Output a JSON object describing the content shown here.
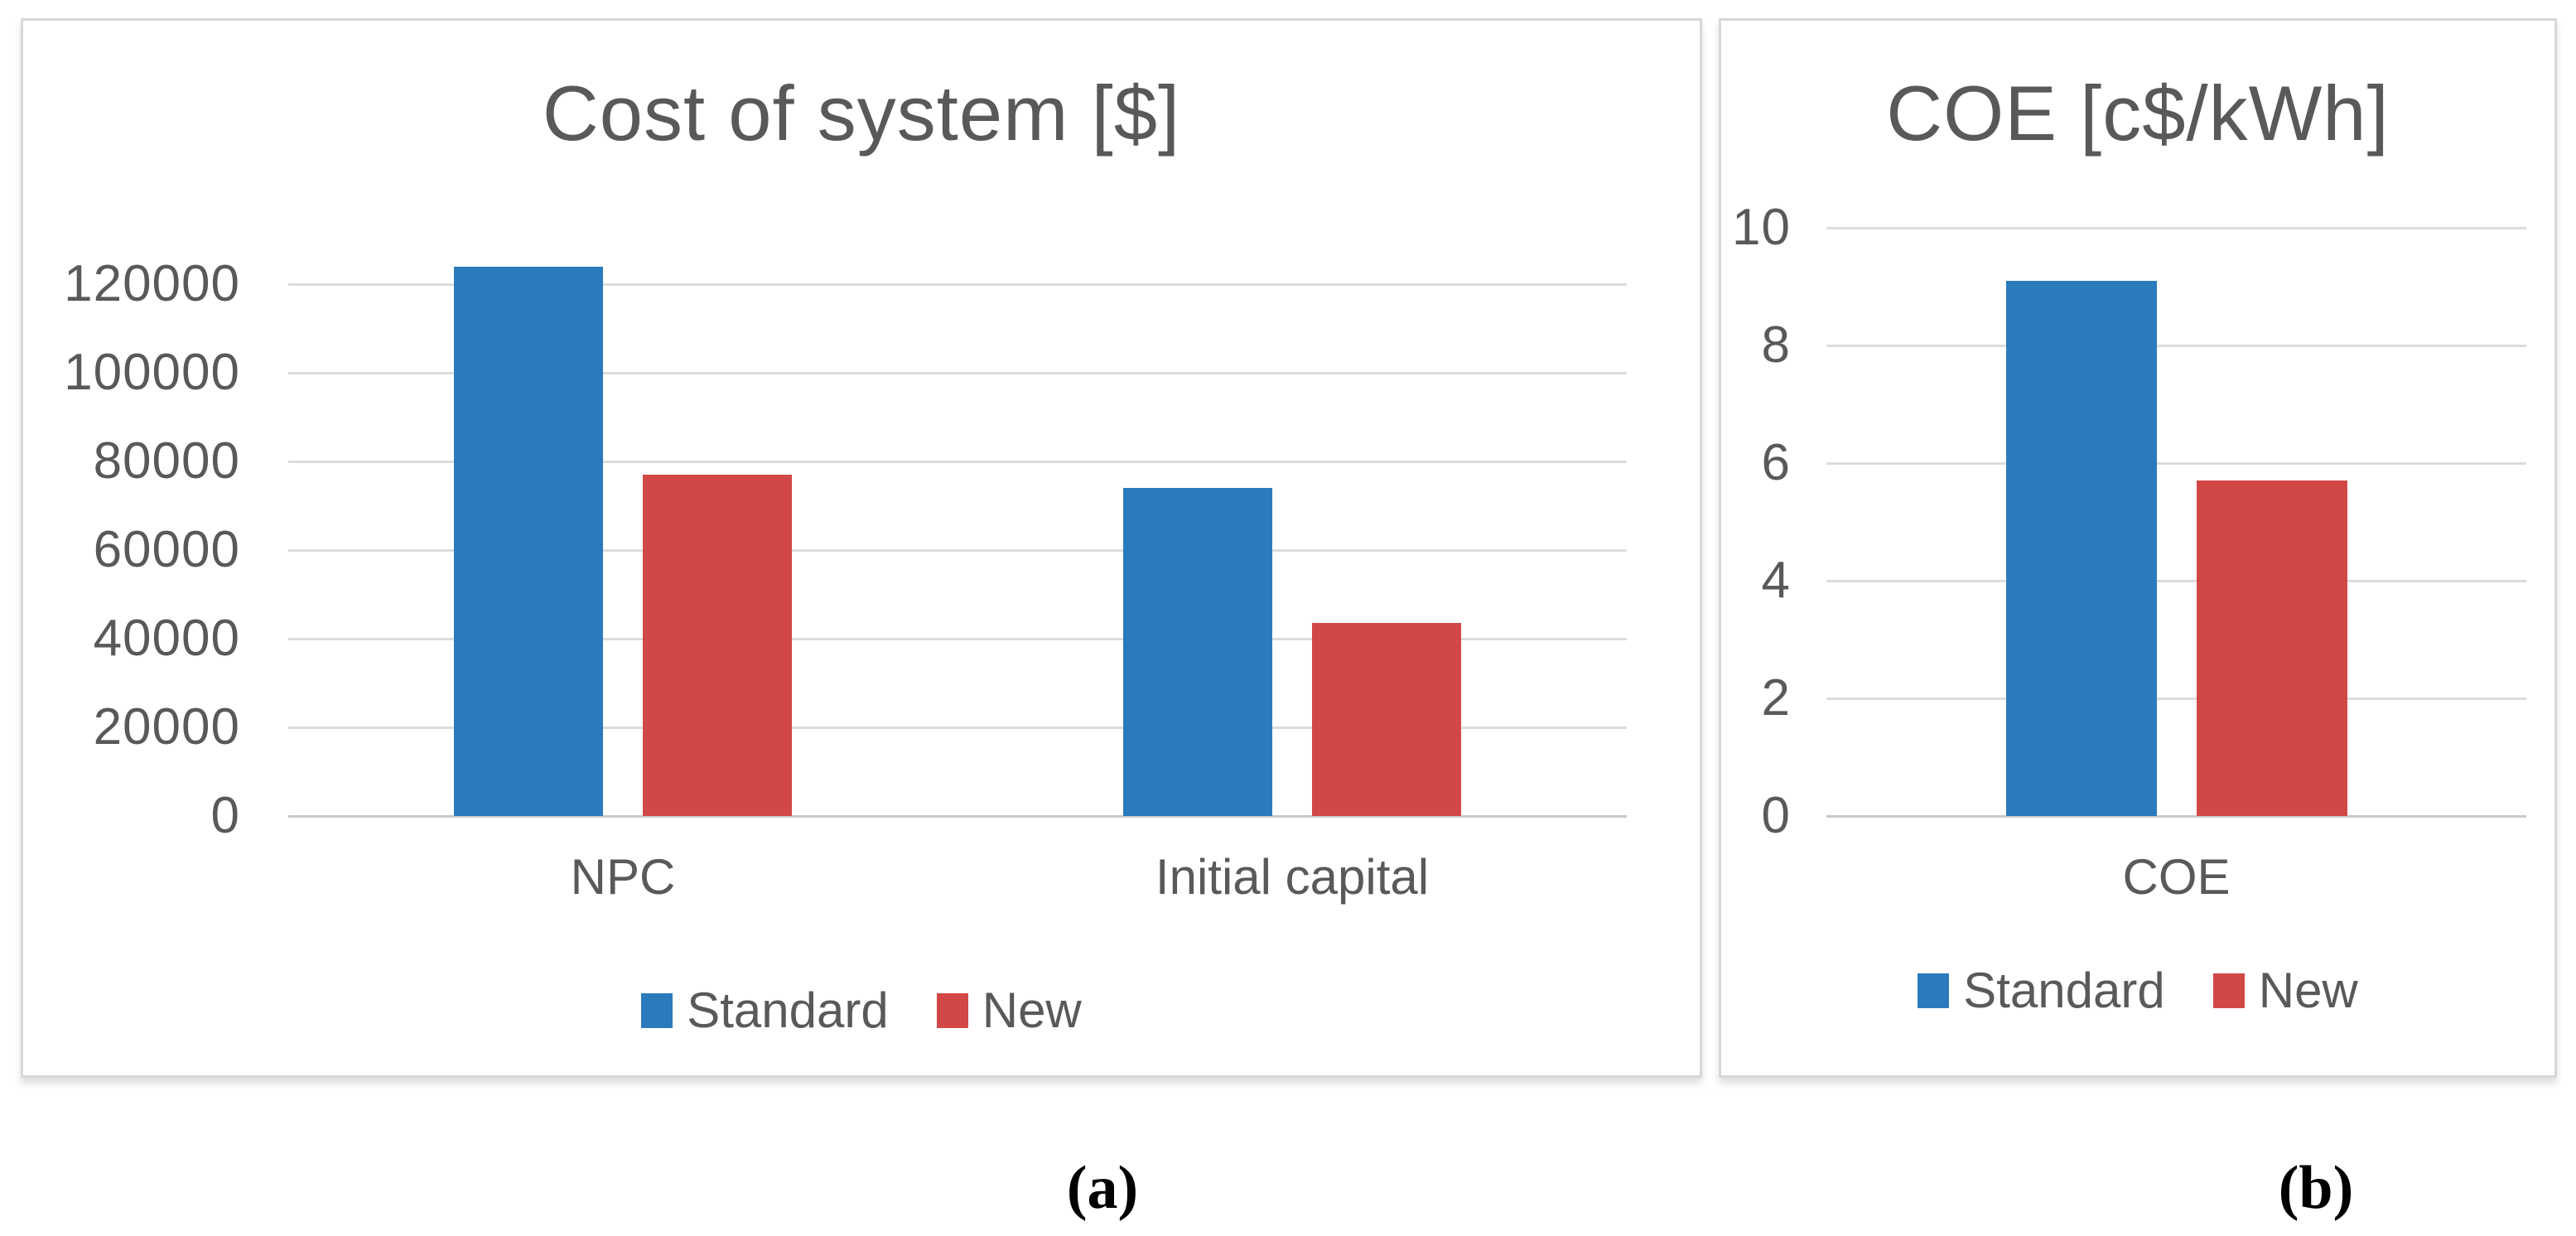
{
  "figure": {
    "captions": [
      "(a)",
      "(b)"
    ]
  },
  "colors": {
    "standard_series": "#2b7bbc",
    "new_series": "#d14846",
    "gridline": "#dcdcdc",
    "axis_line": "#c8c8c8",
    "text_gray": "#595959"
  },
  "chart_data": [
    {
      "type": "bar",
      "title": "Cost of system [$]",
      "categories": [
        "NPC",
        "Initial capital"
      ],
      "series": [
        {
          "name": "Standard",
          "color": "#2b7bbc",
          "values": [
            124000,
            74000
          ]
        },
        {
          "name": "New",
          "color": "#d14846",
          "values": [
            77000,
            43500
          ]
        }
      ],
      "xlabel": "",
      "ylabel": "",
      "y_ticks": [
        0,
        20000,
        40000,
        60000,
        80000,
        100000,
        120000
      ],
      "ylim": [
        0,
        132000
      ],
      "grid": true,
      "legend_position": "bottom"
    },
    {
      "type": "bar",
      "title": "COE [c$/kWh]",
      "categories": [
        "COE"
      ],
      "series": [
        {
          "name": "Standard",
          "color": "#2b7bbc",
          "values": [
            9.1
          ]
        },
        {
          "name": "New",
          "color": "#d14846",
          "values": [
            5.7
          ]
        }
      ],
      "xlabel": "",
      "ylabel": "",
      "y_ticks": [
        0,
        2,
        4,
        6,
        8,
        10
      ],
      "ylim": [
        0,
        10.6
      ],
      "grid": true,
      "legend_position": "bottom"
    }
  ]
}
